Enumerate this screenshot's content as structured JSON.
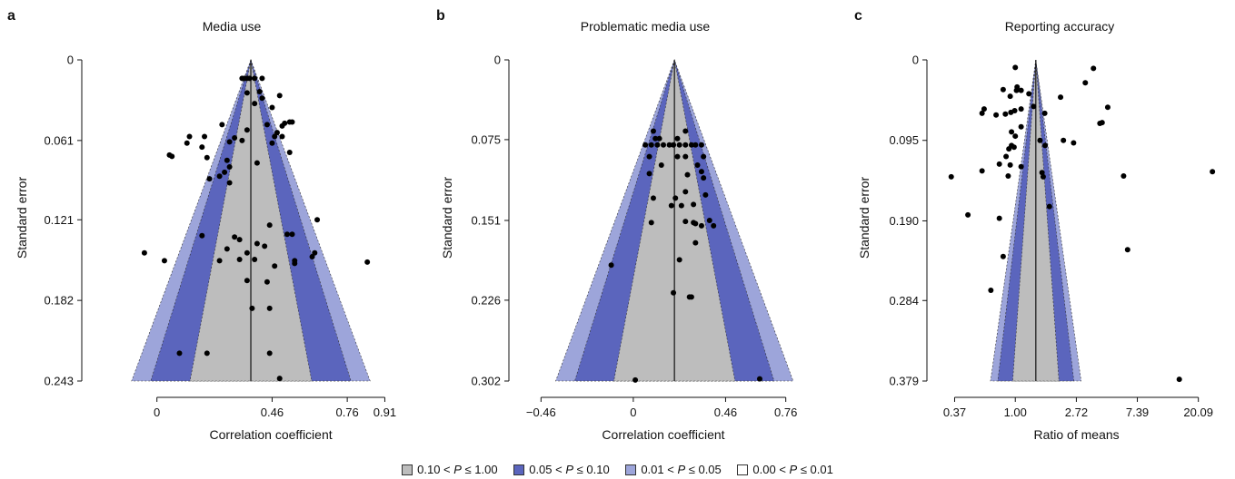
{
  "chart_data": [
    {
      "panel_letter": "a",
      "title": "Media use",
      "type": "scatter",
      "xlabel": "Correlation coefficient",
      "ylabel": "Standard error",
      "x_scale": "linear",
      "xticks": [
        0,
        0.46,
        0.76,
        0.91
      ],
      "xtick_labels": [
        "0",
        "0.46",
        "0.76",
        "0.91"
      ],
      "xlim": [
        -0.3,
        0.97
      ],
      "y_reversed": true,
      "yticks": [
        0,
        0.061,
        0.121,
        0.182,
        0.243
      ],
      "ytick_labels": [
        "0",
        "0.061",
        "0.121",
        "0.182",
        "0.243"
      ],
      "ylim": [
        0,
        0.243
      ],
      "center_estimate": 0.375,
      "points": [
        [
          0.34,
          0.014
        ],
        [
          0.35,
          0.014
        ],
        [
          0.36,
          0.014
        ],
        [
          0.37,
          0.014
        ],
        [
          0.39,
          0.014
        ],
        [
          0.42,
          0.014
        ],
        [
          0.41,
          0.024
        ],
        [
          0.36,
          0.025
        ],
        [
          0.49,
          0.027
        ],
        [
          0.42,
          0.029
        ],
        [
          0.39,
          0.033
        ],
        [
          0.46,
          0.036
        ],
        [
          0.51,
          0.048
        ],
        [
          0.53,
          0.047
        ],
        [
          0.54,
          0.047
        ],
        [
          0.5,
          0.05
        ],
        [
          0.26,
          0.049
        ],
        [
          0.44,
          0.049
        ],
        [
          0.36,
          0.053
        ],
        [
          0.48,
          0.055
        ],
        [
          0.47,
          0.058
        ],
        [
          0.13,
          0.058
        ],
        [
          0.19,
          0.058
        ],
        [
          0.31,
          0.059
        ],
        [
          0.5,
          0.058
        ],
        [
          0.34,
          0.061
        ],
        [
          0.12,
          0.063
        ],
        [
          0.29,
          0.062
        ],
        [
          0.46,
          0.063
        ],
        [
          0.18,
          0.066
        ],
        [
          0.53,
          0.07
        ],
        [
          0.05,
          0.072
        ],
        [
          0.06,
          0.073
        ],
        [
          0.2,
          0.074
        ],
        [
          0.28,
          0.076
        ],
        [
          0.4,
          0.078
        ],
        [
          0.29,
          0.081
        ],
        [
          0.27,
          0.085
        ],
        [
          0.25,
          0.088
        ],
        [
          0.21,
          0.09
        ],
        [
          0.29,
          0.093
        ],
        [
          0.64,
          0.121
        ],
        [
          0.45,
          0.125
        ],
        [
          0.52,
          0.132
        ],
        [
          0.54,
          0.132
        ],
        [
          0.18,
          0.133
        ],
        [
          0.31,
          0.134
        ],
        [
          0.33,
          0.136
        ],
        [
          0.4,
          0.139
        ],
        [
          0.43,
          0.141
        ],
        [
          0.28,
          0.143
        ],
        [
          0.36,
          0.146
        ],
        [
          -0.05,
          0.146
        ],
        [
          0.63,
          0.146
        ],
        [
          0.03,
          0.152
        ],
        [
          0.25,
          0.152
        ],
        [
          0.33,
          0.151
        ],
        [
          0.39,
          0.151
        ],
        [
          0.55,
          0.152
        ],
        [
          0.62,
          0.149
        ],
        [
          0.84,
          0.153
        ],
        [
          0.47,
          0.156
        ],
        [
          0.55,
          0.154
        ],
        [
          0.36,
          0.167
        ],
        [
          0.44,
          0.168
        ],
        [
          0.38,
          0.188
        ],
        [
          0.45,
          0.188
        ],
        [
          0.09,
          0.222
        ],
        [
          0.2,
          0.222
        ],
        [
          0.45,
          0.222
        ],
        [
          0.49,
          0.241
        ]
      ]
    },
    {
      "panel_letter": "b",
      "title": "Problematic media use",
      "type": "scatter",
      "xlabel": "Correlation coefficient",
      "ylabel": "Standard error",
      "x_scale": "linear",
      "xticks": [
        -0.46,
        0,
        0.46,
        0.76
      ],
      "xtick_labels": [
        "−0.46",
        "0",
        "0.46",
        "0.76"
      ],
      "xlim": [
        -0.62,
        0.92
      ],
      "y_reversed": true,
      "yticks": [
        0,
        0.075,
        0.151,
        0.226,
        0.302
      ],
      "ytick_labels": [
        "0",
        "0.075",
        "0.151",
        "0.226",
        "0.302"
      ],
      "ylim": [
        0,
        0.302
      ],
      "center_estimate": 0.205,
      "points": [
        [
          0.1,
          0.067
        ],
        [
          0.26,
          0.067
        ],
        [
          0.11,
          0.074
        ],
        [
          0.22,
          0.074
        ],
        [
          0.13,
          0.074
        ],
        [
          0.06,
          0.08
        ],
        [
          0.09,
          0.08
        ],
        [
          0.12,
          0.08
        ],
        [
          0.15,
          0.08
        ],
        [
          0.18,
          0.08
        ],
        [
          0.2,
          0.08
        ],
        [
          0.23,
          0.08
        ],
        [
          0.26,
          0.08
        ],
        [
          0.29,
          0.08
        ],
        [
          0.31,
          0.08
        ],
        [
          0.34,
          0.08
        ],
        [
          0.08,
          0.091
        ],
        [
          0.22,
          0.091
        ],
        [
          0.26,
          0.091
        ],
        [
          0.35,
          0.091
        ],
        [
          0.14,
          0.099
        ],
        [
          0.32,
          0.099
        ],
        [
          0.08,
          0.107
        ],
        [
          0.27,
          0.108
        ],
        [
          0.34,
          0.105
        ],
        [
          0.35,
          0.111
        ],
        [
          0.26,
          0.124
        ],
        [
          0.36,
          0.127
        ],
        [
          0.21,
          0.13
        ],
        [
          0.1,
          0.13
        ],
        [
          0.3,
          0.136
        ],
        [
          0.24,
          0.137
        ],
        [
          0.19,
          0.137
        ],
        [
          0.38,
          0.151
        ],
        [
          0.26,
          0.152
        ],
        [
          0.09,
          0.153
        ],
        [
          0.3,
          0.153
        ],
        [
          0.31,
          0.154
        ],
        [
          0.34,
          0.156
        ],
        [
          0.4,
          0.156
        ],
        [
          0.31,
          0.172
        ],
        [
          0.23,
          0.188
        ],
        [
          -0.11,
          0.193
        ],
        [
          0.2,
          0.219
        ],
        [
          0.29,
          0.223
        ],
        [
          0.28,
          0.223
        ],
        [
          0.01,
          0.301
        ],
        [
          0.63,
          0.3
        ]
      ]
    },
    {
      "panel_letter": "c",
      "title": "Reporting accuracy",
      "type": "scatter",
      "xlabel": "Ratio of means",
      "ylabel": "Standard error",
      "x_scale": "log",
      "xticks": [
        0.37,
        1.0,
        2.72,
        7.39,
        20.09
      ],
      "xtick_labels": [
        "0.37",
        "1.00",
        "2.72",
        "7.39",
        "20.09"
      ],
      "xlim": [
        0.235,
        33
      ],
      "y_reversed": true,
      "yticks": [
        0,
        0.095,
        0.19,
        0.284,
        0.379
      ],
      "ytick_labels": [
        "0",
        "0.095",
        "0.190",
        "0.284",
        "0.379"
      ],
      "ylim": [
        0,
        0.379
      ],
      "center_estimate": 1.4,
      "points": [
        [
          1.0,
          0.009
        ],
        [
          3.6,
          0.01
        ],
        [
          3.15,
          0.027
        ],
        [
          1.03,
          0.032
        ],
        [
          0.82,
          0.035
        ],
        [
          1.02,
          0.036
        ],
        [
          1.1,
          0.036
        ],
        [
          1.25,
          0.04
        ],
        [
          0.92,
          0.043
        ],
        [
          2.1,
          0.044
        ],
        [
          1.35,
          0.055
        ],
        [
          4.55,
          0.056
        ],
        [
          0.6,
          0.058
        ],
        [
          0.58,
          0.063
        ],
        [
          0.99,
          0.06
        ],
        [
          1.1,
          0.058
        ],
        [
          0.85,
          0.064
        ],
        [
          0.73,
          0.065
        ],
        [
          0.93,
          0.062
        ],
        [
          1.62,
          0.063
        ],
        [
          4.15,
          0.074
        ],
        [
          4.0,
          0.075
        ],
        [
          1.1,
          0.079
        ],
        [
          0.94,
          0.085
        ],
        [
          1.0,
          0.09
        ],
        [
          1.5,
          0.095
        ],
        [
          2.2,
          0.095
        ],
        [
          2.6,
          0.098
        ],
        [
          1.63,
          0.101
        ],
        [
          0.94,
          0.101
        ],
        [
          0.9,
          0.105
        ],
        [
          0.98,
          0.103
        ],
        [
          0.86,
          0.114
        ],
        [
          0.77,
          0.123
        ],
        [
          0.58,
          0.131
        ],
        [
          0.92,
          0.124
        ],
        [
          1.1,
          0.126
        ],
        [
          0.35,
          0.138
        ],
        [
          5.9,
          0.137
        ],
        [
          1.55,
          0.133
        ],
        [
          0.89,
          0.137
        ],
        [
          25.3,
          0.132
        ],
        [
          1.58,
          0.138
        ],
        [
          1.75,
          0.173
        ],
        [
          0.46,
          0.183
        ],
        [
          0.77,
          0.187
        ],
        [
          6.3,
          0.224
        ],
        [
          0.82,
          0.232
        ],
        [
          0.67,
          0.272
        ],
        [
          14.7,
          0.377
        ]
      ]
    }
  ],
  "legend": [
    {
      "range_text": "0.10 < ",
      "p": "P",
      "rest": " ≤ 1.00",
      "color": "#bdbdbd"
    },
    {
      "range_text": "0.05 < ",
      "p": "P",
      "rest": " ≤ 0.10",
      "color": "#5b65bd"
    },
    {
      "range_text": "0.01 < ",
      "p": "P",
      "rest": " ≤ 0.05",
      "color": "#9da5da"
    },
    {
      "range_text": "0.00 < ",
      "p": "P",
      "rest": " ≤ 0.01",
      "color": "#ffffff"
    }
  ],
  "colors": {
    "region_grey": "#bdbdbd",
    "region_dark_blue": "#5b65bd",
    "region_light_blue": "#9da5da",
    "points": "#000000"
  }
}
